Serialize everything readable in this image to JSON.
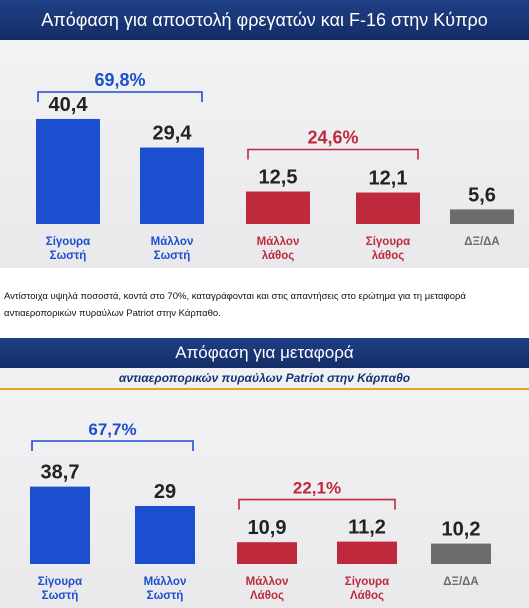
{
  "caption": "Αντίστοιχα υψηλά ποσοστά, κοντά στο 70%, καταγράφονται και στις απαντήσεις στο ερώτημα για τη μεταφορά αντιαεροπορικών πυραύλων Patriot στην Κάρπαθο.",
  "colors": {
    "blue": "#1c4fd0",
    "red": "#be2a3c",
    "gray": "#6c6c6c",
    "header": "#1b3677",
    "accent": "#e8a22a"
  },
  "chart_data": [
    {
      "type": "bar",
      "title": "Απόφαση για αποστολή φρεγατών και F-16 στην Κύπρο",
      "categories": [
        "Σίγουρα Σωστή",
        "Μάλλον Σωστή",
        "Μάλλον λάθος",
        "Σίγουρα λάθος",
        "ΔΞ/ΔΑ"
      ],
      "category_lines": [
        [
          "Σίγουρα",
          "Σωστή"
        ],
        [
          "Μάλλον",
          "Σωστή"
        ],
        [
          "Μάλλον",
          "λάθος"
        ],
        [
          "Σίγουρα",
          "λάθος"
        ],
        [
          "ΔΞ/ΔΑ"
        ]
      ],
      "values": [
        40.4,
        29.4,
        12.5,
        12.1,
        5.6
      ],
      "value_labels": [
        "40,4",
        "29,4",
        "12,5",
        "12,1",
        "5,6"
      ],
      "bar_colors": [
        "#1c4fd0",
        "#1c4fd0",
        "#be2a3c",
        "#be2a3c",
        "#6c6c6c"
      ],
      "groups": [
        {
          "label": "69,8%",
          "value": 69.8,
          "members": [
            0,
            1
          ],
          "color": "#1c4fd0"
        },
        {
          "label": "24,6%",
          "value": 24.6,
          "members": [
            2,
            3
          ],
          "color": "#be2a3c"
        }
      ]
    },
    {
      "type": "bar",
      "title": "Απόφαση για μεταφορά",
      "subtitle": "αντιαεροπορικών πυραύλων Patriot στην Κάρπαθο",
      "categories": [
        "Σίγουρα Σωστή",
        "Μάλλον Σωστή",
        "Μάλλον Λάθος",
        "Σίγουρα Λάθος",
        "ΔΞ/ΔΑ"
      ],
      "category_lines": [
        [
          "Σίγουρα",
          "Σωστή"
        ],
        [
          "Μάλλον",
          "Σωστή"
        ],
        [
          "Μάλλον",
          "Λάθος"
        ],
        [
          "Σίγουρα",
          "Λάθος"
        ],
        [
          "ΔΞ/ΔΑ"
        ]
      ],
      "values": [
        38.7,
        29,
        10.9,
        11.2,
        10.2
      ],
      "value_labels": [
        "38,7",
        "29",
        "10,9",
        "11,2",
        "10,2"
      ],
      "bar_colors": [
        "#1c4fd0",
        "#1c4fd0",
        "#be2a3c",
        "#be2a3c",
        "#6c6c6c"
      ],
      "groups": [
        {
          "label": "67,7%",
          "value": 67.7,
          "members": [
            0,
            1
          ],
          "color": "#1c4fd0"
        },
        {
          "label": "22,1%",
          "value": 22.1,
          "members": [
            2,
            3
          ],
          "color": "#be2a3c"
        }
      ]
    }
  ]
}
